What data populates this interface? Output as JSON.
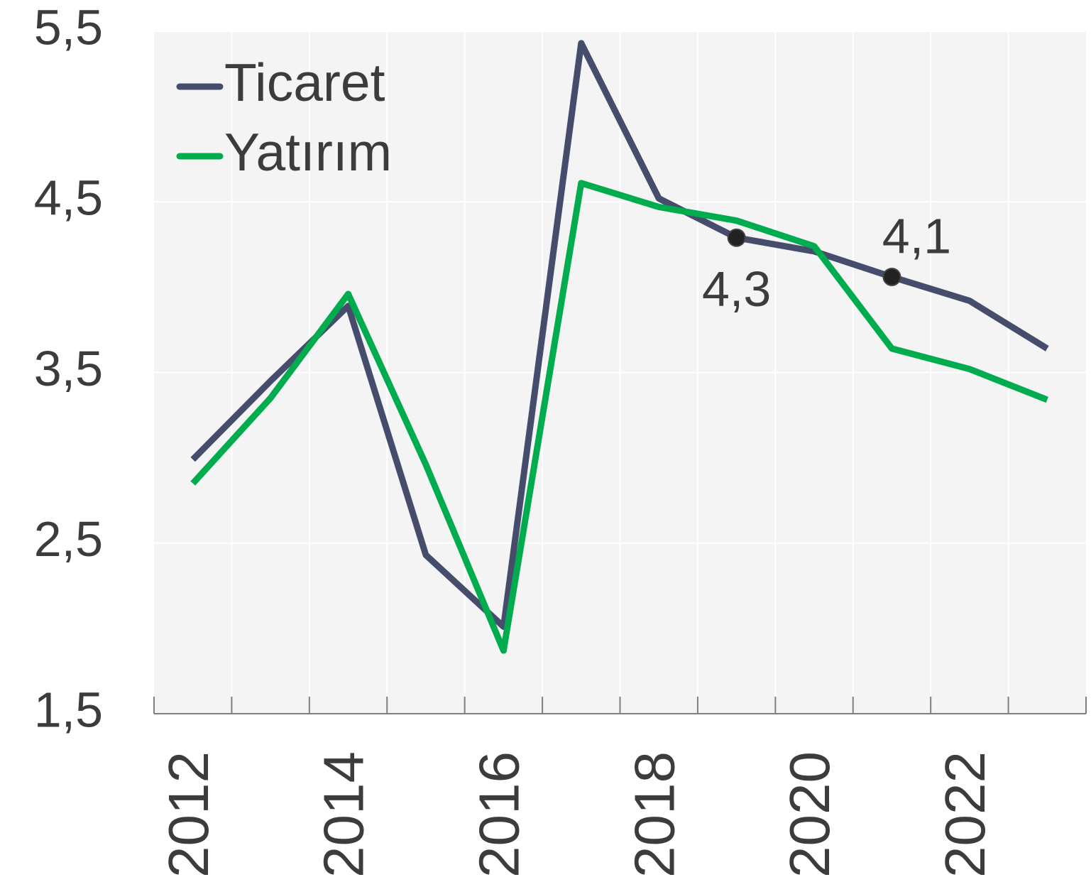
{
  "chart_data": {
    "type": "line",
    "categories": [
      "2012",
      null,
      "2014",
      null,
      "2016",
      null,
      "2018",
      null,
      "2020",
      null,
      "2022",
      null
    ],
    "series": [
      {
        "name": "Ticaret",
        "color": "#464c6b",
        "values": [
          2.99,
          3.45,
          3.89,
          2.43,
          2.01,
          5.43,
          4.52,
          4.29,
          4.21,
          4.06,
          3.92,
          3.64
        ],
        "value_labels": [
          null,
          null,
          null,
          null,
          null,
          null,
          null,
          "4,3",
          null,
          "4,1",
          null,
          null
        ]
      },
      {
        "name": "Yatırım",
        "color": "#00ac4e",
        "values": [
          2.85,
          3.35,
          3.96,
          2.96,
          1.87,
          4.61,
          4.47,
          4.39,
          4.24,
          3.64,
          3.52,
          3.34
        ]
      }
    ],
    "ylim": [
      1.5,
      5.5
    ],
    "yticks": [
      {
        "value": 1.5,
        "label": "1,5"
      },
      {
        "value": 2.5,
        "label": "2,5"
      },
      {
        "value": 3.5,
        "label": "3,5"
      },
      {
        "value": 4.5,
        "label": "4,5"
      },
      {
        "value": 5.5,
        "label": "5,5"
      }
    ],
    "grid": true,
    "legend": "top-left"
  }
}
